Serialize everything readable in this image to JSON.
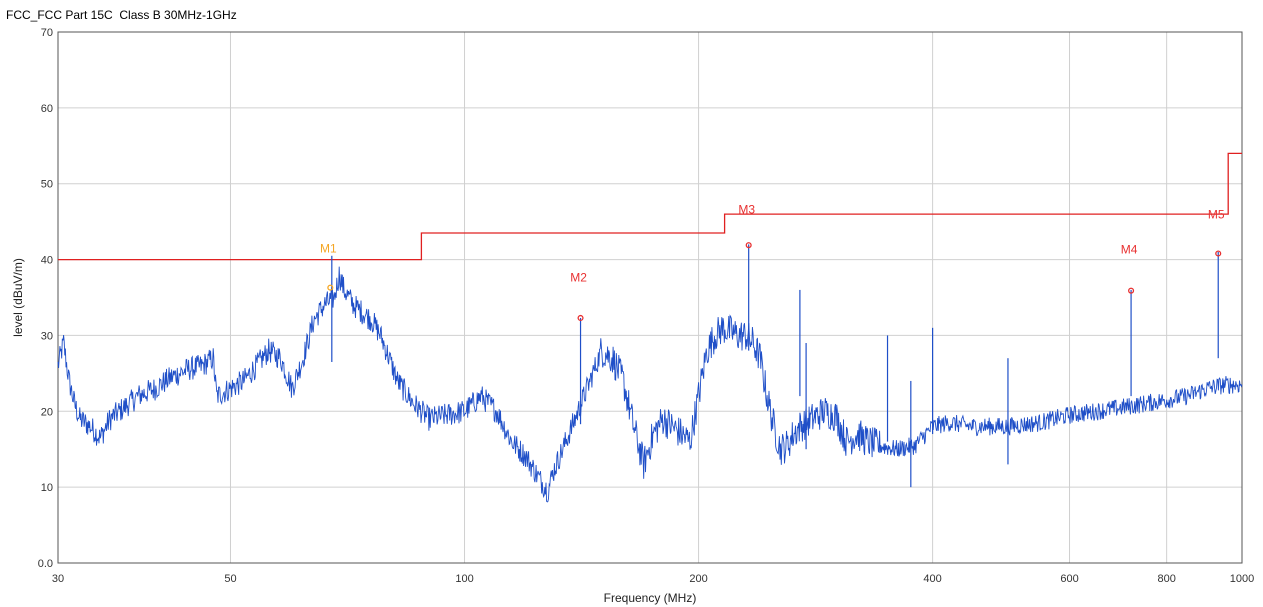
{
  "chart_data": {
    "type": "line",
    "title": "FCC_FCC Part 15C  Class B 30MHz-1GHz",
    "xlabel": "Frequency (MHz)",
    "ylabel": "level (dBuV/m)",
    "x_scale": "log",
    "xlim": [
      30,
      1000
    ],
    "ylim": [
      0,
      70
    ],
    "x_ticks": [
      {
        "value": 30,
        "label": "30"
      },
      {
        "value": 50,
        "label": "50"
      },
      {
        "value": 100,
        "label": "100"
      },
      {
        "value": 200,
        "label": "200"
      },
      {
        "value": 400,
        "label": "400"
      },
      {
        "value": 600,
        "label": "600"
      },
      {
        "value": 800,
        "label": "800"
      },
      {
        "value": 1000,
        "label": "1000"
      }
    ],
    "y_ticks": [
      {
        "value": 0,
        "label": "0.0"
      },
      {
        "value": 10,
        "label": "10"
      },
      {
        "value": 20,
        "label": "20"
      },
      {
        "value": 30,
        "label": "30"
      },
      {
        "value": 40,
        "label": "40"
      },
      {
        "value": 50,
        "label": "50"
      },
      {
        "value": 60,
        "label": "60"
      },
      {
        "value": 70,
        "label": "70"
      }
    ],
    "grid": true,
    "colors": {
      "trace": "#1f4fc8",
      "limit": "#e02020",
      "marker": "#e83030",
      "marker_m1": "#f5a623",
      "grid": "#d0d0d0"
    },
    "series": [
      {
        "role": "limit",
        "x": [
          30,
          88,
          88,
          216,
          216,
          960,
          960,
          1000
        ],
        "y": [
          40,
          40,
          43.5,
          43.5,
          46,
          46,
          54,
          54
        ]
      },
      {
        "role": "trace",
        "x": [
          30,
          30.5,
          31,
          31.5,
          32,
          33,
          34,
          35,
          36,
          37,
          38,
          40,
          42,
          44,
          46,
          47.5,
          48,
          50,
          52,
          54,
          56,
          58,
          60,
          62,
          64,
          66,
          68,
          69,
          70,
          72,
          74,
          76,
          78,
          80,
          82,
          86,
          90,
          95,
          100,
          105,
          110,
          115,
          120,
          125,
          128,
          130,
          135,
          140,
          145,
          150,
          155,
          160,
          165,
          170,
          175,
          180,
          185,
          190,
          195,
          200,
          205,
          210,
          215,
          220,
          225,
          230,
          235,
          240,
          245,
          250,
          255,
          260,
          265,
          270,
          280,
          290,
          300,
          310,
          320,
          330,
          340,
          360,
          380,
          400,
          420,
          450,
          500,
          550,
          600,
          650,
          700,
          750,
          800,
          850,
          900,
          950,
          1000
        ],
        "y": [
          26,
          29,
          24,
          21,
          19,
          18,
          16.5,
          19,
          20,
          21,
          22,
          23,
          24.5,
          25.5,
          26,
          27,
          22,
          23,
          24,
          26,
          28,
          27,
          23,
          27,
          32,
          34,
          35,
          38,
          36,
          34,
          33,
          32,
          30,
          27,
          24,
          21,
          19,
          19.5,
          20,
          22,
          20,
          16,
          14,
          11,
          9.5,
          12,
          16,
          20,
          24,
          28,
          27,
          24,
          18,
          13,
          17,
          19,
          18,
          17,
          16,
          22,
          28,
          30,
          31,
          30.5,
          30,
          30,
          29,
          27,
          22,
          18,
          15,
          15.5,
          17,
          18,
          19,
          20,
          19.5,
          16,
          17,
          16,
          15.5,
          15,
          15.5,
          18,
          18.5,
          18,
          18,
          18.5,
          19.5,
          20,
          20.5,
          21,
          21.5,
          22,
          23,
          23.5,
          23.5
        ]
      }
    ],
    "spikes": [
      {
        "x": 67.5,
        "y": 40.5
      },
      {
        "x": 141,
        "y": 32.3
      },
      {
        "x": 232,
        "y": 42
      },
      {
        "x": 270,
        "y": 36
      },
      {
        "x": 275,
        "y": 29
      },
      {
        "x": 350,
        "y": 30
      },
      {
        "x": 375,
        "y": 24
      },
      {
        "x": 400,
        "y": 31
      },
      {
        "x": 500,
        "y": 27
      },
      {
        "x": 720,
        "y": 36
      },
      {
        "x": 932,
        "y": 41
      }
    ],
    "markers": [
      {
        "label": "M1",
        "x": 67.2,
        "y": 36.3,
        "label_y": 40.9
      },
      {
        "label": "M2",
        "x": 141,
        "y": 32.3,
        "label_y": 37.1
      },
      {
        "label": "M3",
        "x": 232,
        "y": 41.9,
        "label_y": 46.1
      },
      {
        "label": "M4",
        "x": 720,
        "y": 35.9,
        "label_y": 40.8
      },
      {
        "label": "M5",
        "x": 932,
        "y": 40.8,
        "label_y": 45.4
      }
    ]
  }
}
